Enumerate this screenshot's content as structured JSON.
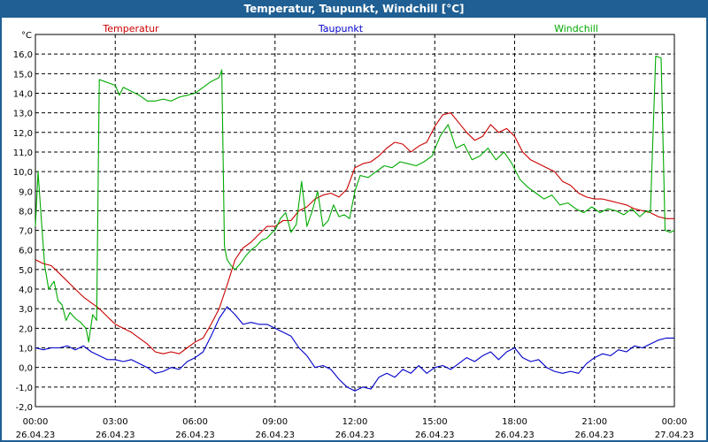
{
  "window": {
    "title": "Temperatur, Taupunkt, Windchill [°C]"
  },
  "chart_data": {
    "type": "line",
    "title": "Temperatur, Taupunkt, Windchill [°C]",
    "ylabel": "°C",
    "xlabel": "",
    "ylim": [
      -2.0,
      17.0
    ],
    "xlim_hours": [
      0,
      24
    ],
    "grid": true,
    "legend_position": "top",
    "y_ticks": [
      "16,0",
      "15,0",
      "14,0",
      "13,0",
      "12,0",
      "11,0",
      "10,0",
      "9,0",
      "8,0",
      "7,0",
      "6,0",
      "5,0",
      "4,0",
      "3,0",
      "2,0",
      "1,0",
      "0,0",
      "-1,0",
      "-2,0"
    ],
    "y_tick_values": [
      16,
      15,
      14,
      13,
      12,
      11,
      10,
      9,
      8,
      7,
      6,
      5,
      4,
      3,
      2,
      1,
      0,
      -1,
      -2
    ],
    "x_ticks": [
      {
        "hour": 0,
        "time": "00:00",
        "date": "26.04.23"
      },
      {
        "hour": 3,
        "time": "03:00",
        "date": "26.04.23"
      },
      {
        "hour": 6,
        "time": "06:00",
        "date": "26.04.23"
      },
      {
        "hour": 9,
        "time": "09:00",
        "date": "26.04.23"
      },
      {
        "hour": 12,
        "time": "12:00",
        "date": "26.04.23"
      },
      {
        "hour": 15,
        "time": "15:00",
        "date": "26.04.23"
      },
      {
        "hour": 18,
        "time": "18:00",
        "date": "26.04.23"
      },
      {
        "hour": 21,
        "time": "21:00",
        "date": "26.04.23"
      },
      {
        "hour": 24,
        "time": "00:00",
        "date": "27.04.23"
      }
    ],
    "series": [
      {
        "name": "Temperatur",
        "color": "#cc0000",
        "points": [
          [
            0.0,
            5.5
          ],
          [
            0.3,
            5.3
          ],
          [
            0.6,
            5.2
          ],
          [
            0.9,
            4.8
          ],
          [
            1.2,
            4.4
          ],
          [
            1.5,
            4.0
          ],
          [
            1.8,
            3.6
          ],
          [
            2.1,
            3.3
          ],
          [
            2.4,
            3.0
          ],
          [
            2.7,
            2.6
          ],
          [
            3.0,
            2.2
          ],
          [
            3.3,
            2.0
          ],
          [
            3.6,
            1.8
          ],
          [
            3.9,
            1.5
          ],
          [
            4.2,
            1.2
          ],
          [
            4.5,
            0.8
          ],
          [
            4.8,
            0.7
          ],
          [
            5.1,
            0.8
          ],
          [
            5.4,
            0.7
          ],
          [
            5.7,
            1.0
          ],
          [
            6.0,
            1.3
          ],
          [
            6.3,
            1.5
          ],
          [
            6.6,
            2.2
          ],
          [
            6.9,
            3.0
          ],
          [
            7.2,
            4.2
          ],
          [
            7.5,
            5.5
          ],
          [
            7.8,
            6.1
          ],
          [
            8.1,
            6.4
          ],
          [
            8.4,
            6.8
          ],
          [
            8.7,
            7.2
          ],
          [
            9.0,
            7.2
          ],
          [
            9.3,
            7.5
          ],
          [
            9.6,
            7.5
          ],
          [
            9.9,
            8.0
          ],
          [
            10.2,
            8.2
          ],
          [
            10.5,
            8.6
          ],
          [
            10.8,
            8.8
          ],
          [
            11.1,
            8.9
          ],
          [
            11.4,
            8.7
          ],
          [
            11.7,
            9.1
          ],
          [
            12.0,
            10.2
          ],
          [
            12.3,
            10.4
          ],
          [
            12.6,
            10.5
          ],
          [
            12.9,
            10.8
          ],
          [
            13.2,
            11.2
          ],
          [
            13.5,
            11.5
          ],
          [
            13.8,
            11.4
          ],
          [
            14.1,
            11.0
          ],
          [
            14.4,
            11.3
          ],
          [
            14.7,
            11.5
          ],
          [
            15.0,
            12.3
          ],
          [
            15.3,
            12.9
          ],
          [
            15.6,
            13.0
          ],
          [
            15.9,
            12.5
          ],
          [
            16.2,
            12.0
          ],
          [
            16.5,
            11.6
          ],
          [
            16.8,
            11.8
          ],
          [
            17.1,
            12.4
          ],
          [
            17.4,
            12.0
          ],
          [
            17.7,
            12.2
          ],
          [
            18.0,
            11.8
          ],
          [
            18.3,
            11.0
          ],
          [
            18.6,
            10.6
          ],
          [
            18.9,
            10.4
          ],
          [
            19.2,
            10.2
          ],
          [
            19.5,
            10.0
          ],
          [
            19.8,
            9.5
          ],
          [
            20.1,
            9.3
          ],
          [
            20.4,
            8.9
          ],
          [
            20.7,
            8.7
          ],
          [
            21.0,
            8.6
          ],
          [
            21.3,
            8.6
          ],
          [
            21.6,
            8.5
          ],
          [
            21.9,
            8.4
          ],
          [
            22.2,
            8.3
          ],
          [
            22.5,
            8.1
          ],
          [
            22.8,
            8.0
          ],
          [
            23.1,
            7.9
          ],
          [
            23.4,
            7.7
          ],
          [
            23.7,
            7.6
          ],
          [
            24.0,
            7.6
          ]
        ]
      },
      {
        "name": "Taupunkt",
        "color": "#0000cc",
        "points": [
          [
            0.0,
            1.0
          ],
          [
            0.3,
            0.9
          ],
          [
            0.6,
            1.0
          ],
          [
            0.9,
            1.0
          ],
          [
            1.2,
            1.1
          ],
          [
            1.5,
            0.9
          ],
          [
            1.8,
            1.1
          ],
          [
            2.1,
            0.8
          ],
          [
            2.4,
            0.6
          ],
          [
            2.7,
            0.4
          ],
          [
            3.0,
            0.4
          ],
          [
            3.3,
            0.3
          ],
          [
            3.6,
            0.4
          ],
          [
            3.9,
            0.2
          ],
          [
            4.2,
            0.0
          ],
          [
            4.5,
            -0.3
          ],
          [
            4.8,
            -0.2
          ],
          [
            5.1,
            0.0
          ],
          [
            5.4,
            -0.1
          ],
          [
            5.7,
            0.3
          ],
          [
            6.0,
            0.5
          ],
          [
            6.3,
            0.8
          ],
          [
            6.6,
            1.6
          ],
          [
            6.9,
            2.5
          ],
          [
            7.2,
            3.1
          ],
          [
            7.5,
            2.7
          ],
          [
            7.8,
            2.2
          ],
          [
            8.1,
            2.3
          ],
          [
            8.4,
            2.2
          ],
          [
            8.7,
            2.2
          ],
          [
            9.0,
            2.0
          ],
          [
            9.3,
            1.8
          ],
          [
            9.6,
            1.6
          ],
          [
            9.9,
            1.0
          ],
          [
            10.2,
            0.6
          ],
          [
            10.5,
            0.0
          ],
          [
            10.8,
            0.1
          ],
          [
            11.1,
            -0.1
          ],
          [
            11.4,
            -0.6
          ],
          [
            11.7,
            -1.0
          ],
          [
            12.0,
            -1.2
          ],
          [
            12.3,
            -1.0
          ],
          [
            12.6,
            -1.1
          ],
          [
            12.9,
            -0.5
          ],
          [
            13.2,
            -0.3
          ],
          [
            13.5,
            -0.5
          ],
          [
            13.8,
            -0.1
          ],
          [
            14.1,
            -0.3
          ],
          [
            14.4,
            0.1
          ],
          [
            14.7,
            -0.3
          ],
          [
            15.0,
            0.0
          ],
          [
            15.3,
            0.1
          ],
          [
            15.6,
            -0.1
          ],
          [
            15.9,
            0.2
          ],
          [
            16.2,
            0.5
          ],
          [
            16.5,
            0.3
          ],
          [
            16.8,
            0.6
          ],
          [
            17.1,
            0.8
          ],
          [
            17.4,
            0.4
          ],
          [
            17.7,
            0.8
          ],
          [
            18.0,
            1.0
          ],
          [
            18.3,
            0.5
          ],
          [
            18.6,
            0.3
          ],
          [
            18.9,
            0.4
          ],
          [
            19.2,
            0.0
          ],
          [
            19.5,
            -0.2
          ],
          [
            19.8,
            -0.3
          ],
          [
            20.1,
            -0.2
          ],
          [
            20.4,
            -0.3
          ],
          [
            20.7,
            0.2
          ],
          [
            21.0,
            0.5
          ],
          [
            21.3,
            0.7
          ],
          [
            21.6,
            0.6
          ],
          [
            21.9,
            0.9
          ],
          [
            22.2,
            0.8
          ],
          [
            22.5,
            1.1
          ],
          [
            22.8,
            1.0
          ],
          [
            23.1,
            1.2
          ],
          [
            23.4,
            1.4
          ],
          [
            23.7,
            1.5
          ],
          [
            24.0,
            1.5
          ]
        ]
      },
      {
        "name": "Windchill",
        "color": "#00aa00",
        "points": [
          [
            0.0,
            7.2
          ],
          [
            0.1,
            10.0
          ],
          [
            0.2,
            8.0
          ],
          [
            0.35,
            5.2
          ],
          [
            0.5,
            4.0
          ],
          [
            0.7,
            4.4
          ],
          [
            0.85,
            3.4
          ],
          [
            1.0,
            3.2
          ],
          [
            1.15,
            2.4
          ],
          [
            1.3,
            2.8
          ],
          [
            1.5,
            2.5
          ],
          [
            1.7,
            2.3
          ],
          [
            1.9,
            2.0
          ],
          [
            2.0,
            1.3
          ],
          [
            2.15,
            2.7
          ],
          [
            2.3,
            2.4
          ],
          [
            2.4,
            14.7
          ],
          [
            2.6,
            14.6
          ],
          [
            2.8,
            14.5
          ],
          [
            3.0,
            14.4
          ],
          [
            3.15,
            13.9
          ],
          [
            3.3,
            14.3
          ],
          [
            3.6,
            14.1
          ],
          [
            3.9,
            13.9
          ],
          [
            4.2,
            13.6
          ],
          [
            4.5,
            13.6
          ],
          [
            4.8,
            13.7
          ],
          [
            5.1,
            13.6
          ],
          [
            5.4,
            13.8
          ],
          [
            5.7,
            13.9
          ],
          [
            6.0,
            14.0
          ],
          [
            6.3,
            14.3
          ],
          [
            6.6,
            14.6
          ],
          [
            6.9,
            14.8
          ],
          [
            7.0,
            15.2
          ],
          [
            7.1,
            6.2
          ],
          [
            7.2,
            5.5
          ],
          [
            7.35,
            5.2
          ],
          [
            7.5,
            5.0
          ],
          [
            7.7,
            5.3
          ],
          [
            7.9,
            5.7
          ],
          [
            8.1,
            6.0
          ],
          [
            8.3,
            6.2
          ],
          [
            8.5,
            6.5
          ],
          [
            8.7,
            6.6
          ],
          [
            8.9,
            6.9
          ],
          [
            9.0,
            7.0
          ],
          [
            9.2,
            7.6
          ],
          [
            9.4,
            7.9
          ],
          [
            9.6,
            6.9
          ],
          [
            9.8,
            7.3
          ],
          [
            10.0,
            9.5
          ],
          [
            10.2,
            7.2
          ],
          [
            10.4,
            8.0
          ],
          [
            10.6,
            9.0
          ],
          [
            10.8,
            7.2
          ],
          [
            11.0,
            7.5
          ],
          [
            11.2,
            8.3
          ],
          [
            11.4,
            7.7
          ],
          [
            11.6,
            7.8
          ],
          [
            11.8,
            7.6
          ],
          [
            12.0,
            9.0
          ],
          [
            12.2,
            9.8
          ],
          [
            12.5,
            9.7
          ],
          [
            12.8,
            10.0
          ],
          [
            13.1,
            10.3
          ],
          [
            13.4,
            10.2
          ],
          [
            13.7,
            10.5
          ],
          [
            14.0,
            10.4
          ],
          [
            14.3,
            10.3
          ],
          [
            14.6,
            10.5
          ],
          [
            14.9,
            10.8
          ],
          [
            15.2,
            11.8
          ],
          [
            15.5,
            12.4
          ],
          [
            15.8,
            11.2
          ],
          [
            16.1,
            11.4
          ],
          [
            16.4,
            10.6
          ],
          [
            16.7,
            10.8
          ],
          [
            17.0,
            11.2
          ],
          [
            17.3,
            10.6
          ],
          [
            17.6,
            11.0
          ],
          [
            17.9,
            10.4
          ],
          [
            18.2,
            9.6
          ],
          [
            18.5,
            9.2
          ],
          [
            18.8,
            8.9
          ],
          [
            19.1,
            8.6
          ],
          [
            19.4,
            8.8
          ],
          [
            19.7,
            8.3
          ],
          [
            20.0,
            8.4
          ],
          [
            20.3,
            8.1
          ],
          [
            20.6,
            7.9
          ],
          [
            20.9,
            8.2
          ],
          [
            21.2,
            7.9
          ],
          [
            21.5,
            8.1
          ],
          [
            21.8,
            8.0
          ],
          [
            22.1,
            7.8
          ],
          [
            22.4,
            8.1
          ],
          [
            22.7,
            7.7
          ],
          [
            22.95,
            8.0
          ],
          [
            23.1,
            7.9
          ],
          [
            23.3,
            15.9
          ],
          [
            23.5,
            15.8
          ],
          [
            23.65,
            7.0
          ],
          [
            23.85,
            6.9
          ],
          [
            24.0,
            7.0
          ]
        ]
      }
    ]
  }
}
